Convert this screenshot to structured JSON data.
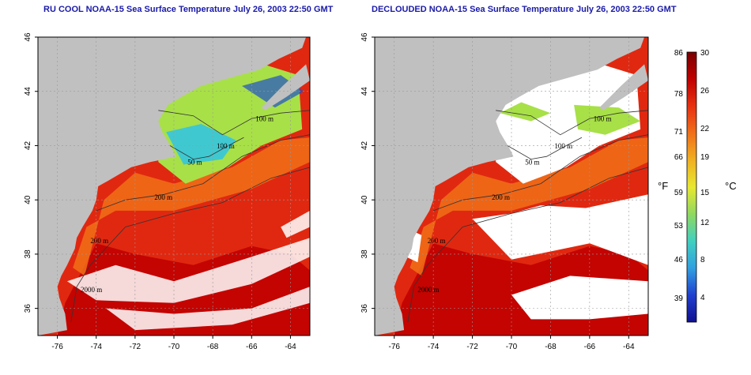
{
  "panels": [
    {
      "title": "RU COOL NOAA-15 Sea Surface Temperature July 26, 2003 22:50 GMT",
      "mode": "cloudy"
    },
    {
      "title": "DECLOUDED NOAA-15 Sea Surface Temperature July 26, 2003 22:50 GMT",
      "mode": "declouded"
    }
  ],
  "axes": {
    "lon_ticks": [
      -76,
      -74,
      -72,
      -70,
      -68,
      -66,
      -64
    ],
    "lat_ticks": [
      36,
      38,
      40,
      42,
      44,
      46
    ],
    "lon_range": [
      -77,
      -63
    ],
    "lat_range": [
      35,
      46
    ]
  },
  "contour_labels": [
    {
      "text": "100 m",
      "lon": -65.8,
      "lat": 42.9
    },
    {
      "text": "100 m",
      "lon": -67.8,
      "lat": 41.9
    },
    {
      "text": "50 m",
      "lon": -69.3,
      "lat": 41.3
    },
    {
      "text": "200 m",
      "lon": -71.0,
      "lat": 40.0
    },
    {
      "text": "200 m",
      "lon": -74.3,
      "lat": 38.4
    },
    {
      "text": "2000 m",
      "lon": -74.8,
      "lat": 36.6
    }
  ],
  "colorbar": {
    "fahrenheit_labels": [
      "86",
      "78",
      "71",
      "66",
      "59",
      "53",
      "46",
      "39"
    ],
    "celsius_labels": [
      "30",
      "26",
      "22",
      "19",
      "15",
      "12",
      "8",
      "4"
    ],
    "unit_f": "°F",
    "unit_c": "°C",
    "colors": [
      "#7a0000",
      "#c00000",
      "#e83010",
      "#f07018",
      "#f0b020",
      "#e8e830",
      "#90d860",
      "#40d0c0",
      "#30a0e0",
      "#2040d0",
      "#101090"
    ]
  },
  "map_colors": {
    "land": "#c0c0c0",
    "cloud": "#ffffff",
    "warm": "#e02810",
    "hot": "#c00000",
    "orange": "#f07018",
    "green": "#a8e048",
    "cyan": "#40c8d0",
    "blue": "#2050c8"
  }
}
